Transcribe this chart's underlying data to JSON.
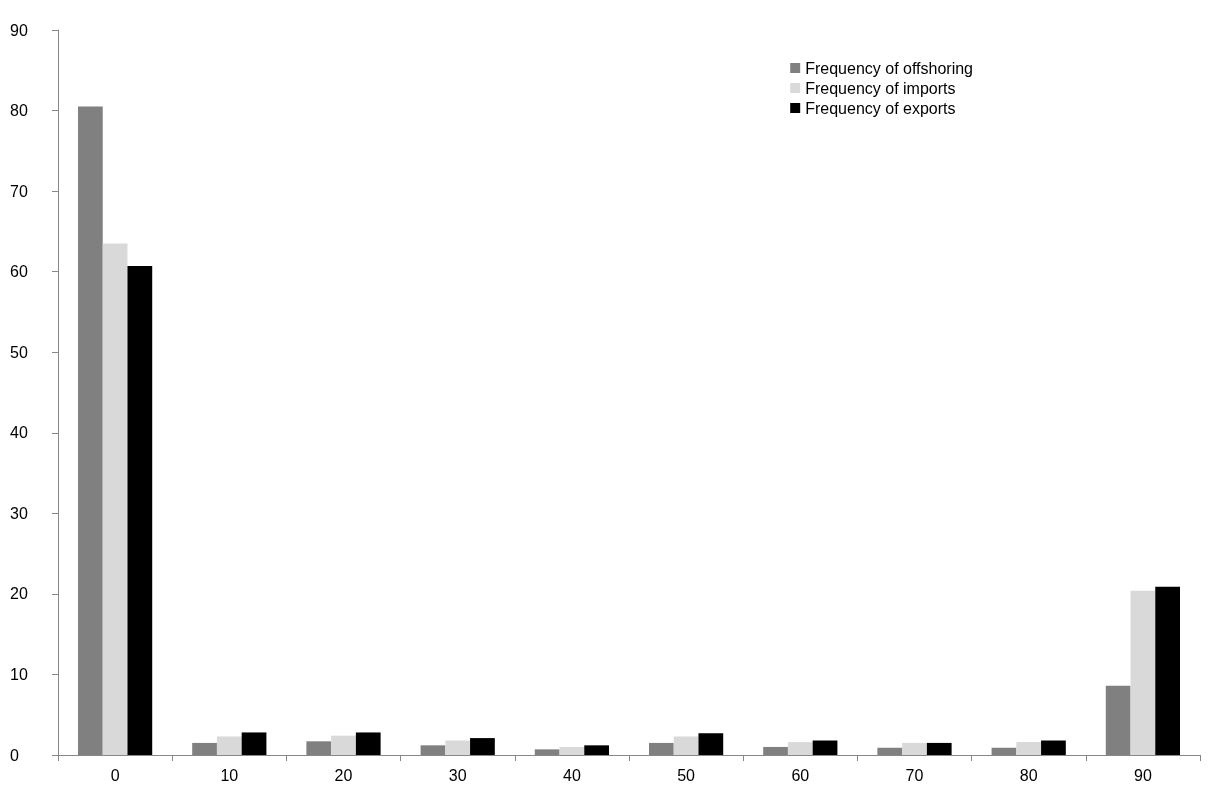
{
  "chart_data": {
    "type": "bar",
    "categories": [
      "0",
      "10",
      "20",
      "30",
      "40",
      "50",
      "60",
      "70",
      "80",
      "90"
    ],
    "series": [
      {
        "name": "Frequency of offshoring",
        "color": "#808080",
        "values": [
          80.5,
          1.5,
          1.7,
          1.2,
          0.7,
          1.5,
          1.0,
          0.9,
          0.9,
          8.6
        ]
      },
      {
        "name": "Frequency of imports",
        "color": "#d9d9d9",
        "values": [
          63.5,
          2.3,
          2.4,
          1.8,
          1.0,
          2.3,
          1.6,
          1.5,
          1.6,
          20.4
        ]
      },
      {
        "name": "Frequency of exports",
        "color": "#000000",
        "values": [
          60.7,
          2.8,
          2.8,
          2.1,
          1.2,
          2.7,
          1.8,
          1.5,
          1.8,
          20.9
        ]
      }
    ],
    "ylim": [
      0,
      90
    ],
    "yticks": [
      0,
      10,
      20,
      30,
      40,
      50,
      60,
      70,
      80,
      90
    ],
    "grid": false,
    "legend": "top right"
  }
}
